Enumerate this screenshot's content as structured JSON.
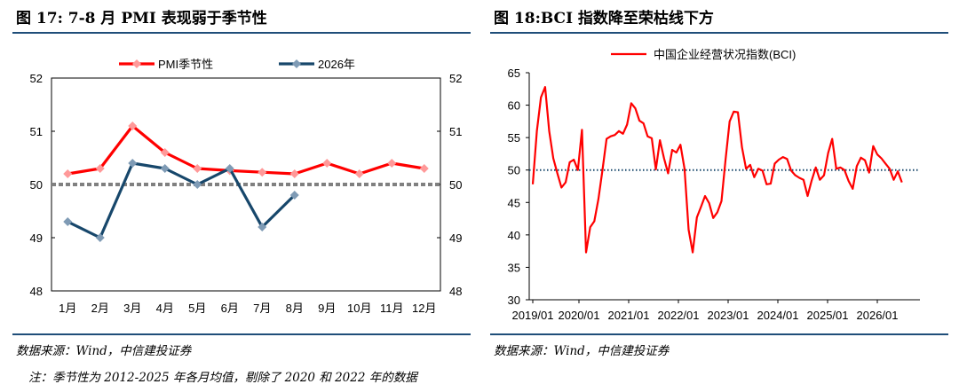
{
  "left": {
    "title": "图 17: 7-8 月 PMI 表现弱于季节性",
    "source": "数据来源：Wind，中信建投证券",
    "note": "注：季节性为 2012-2025 年各月均值，剔除了 2020 和 2022 年的数据"
  },
  "right": {
    "title": "图 18:BCI 指数降至荣枯线下方",
    "source": "数据来源：Wind，中信建投证券"
  },
  "chart_data": [
    {
      "type": "line",
      "categories": [
        "1月",
        "2月",
        "3月",
        "4月",
        "5月",
        "6月",
        "7月",
        "8月",
        "9月",
        "10月",
        "11月",
        "12月"
      ],
      "series": [
        {
          "name": "PMI季节性",
          "color": "#ff0000",
          "marker_color": "#ff9999",
          "values": [
            50.2,
            50.3,
            51.1,
            50.6,
            50.3,
            50.26,
            50.23,
            50.2,
            50.4,
            50.2,
            50.4,
            50.3
          ]
        },
        {
          "name": "2026年",
          "color": "#17476b",
          "marker_color": "#7f9bb5",
          "values": [
            49.3,
            49.0,
            50.4,
            50.3,
            50.0,
            50.3,
            49.2,
            49.8,
            null,
            null,
            null,
            null
          ]
        }
      ],
      "reference_line": 50,
      "ylim": [
        48,
        52
      ],
      "yticks": [
        "48",
        "49",
        "50",
        "51",
        "52"
      ],
      "dual_axis": true,
      "legend": "top",
      "grid": false
    },
    {
      "type": "line",
      "series": [
        {
          "name": "中国企业经营状况指数(BCI)",
          "color": "#ff0000",
          "values": [
            47.8,
            56.0,
            61.2,
            62.8,
            56.0,
            51.8,
            49.5,
            47.3,
            48.1,
            51.2,
            51.6,
            50.0,
            56.2,
            37.3,
            41.2,
            42.1,
            45.5,
            50.0,
            54.8,
            55.2,
            55.4,
            56.0,
            55.6,
            57.0,
            60.3,
            59.5,
            57.6,
            57.2,
            55.2,
            54.9,
            50.1,
            54.6,
            51.8,
            49.5,
            53.1,
            52.7,
            53.9,
            50.2,
            40.8,
            37.3,
            42.7,
            44.3,
            46.0,
            44.9,
            42.6,
            43.5,
            45.2,
            51.6,
            57.5,
            59.0,
            58.9,
            53.5,
            50.2,
            50.8,
            48.9,
            50.2,
            49.9,
            47.8,
            47.9,
            51.0,
            51.6,
            52.0,
            51.7,
            49.9,
            49.2,
            48.8,
            48.5,
            46.0,
            48.4,
            50.4,
            48.5,
            49.2,
            52.6,
            54.8,
            50.2,
            50.4,
            50.0,
            48.3,
            47.1,
            50.6,
            51.9,
            51.5,
            49.6,
            53.7,
            52.4,
            51.8,
            51.0,
            50.2,
            48.5,
            49.8,
            48.1
          ]
        }
      ],
      "x_start": "2019/01",
      "xticks": [
        "2019/01",
        "2020/01",
        "2021/01",
        "2022/01",
        "2023/01",
        "2024/01",
        "2025/01",
        "2026/01"
      ],
      "reference_line": 50,
      "ylim": [
        30,
        65
      ],
      "yticks": [
        "30",
        "35",
        "40",
        "45",
        "50",
        "55",
        "60",
        "65"
      ],
      "legend": "top",
      "grid": false
    }
  ]
}
